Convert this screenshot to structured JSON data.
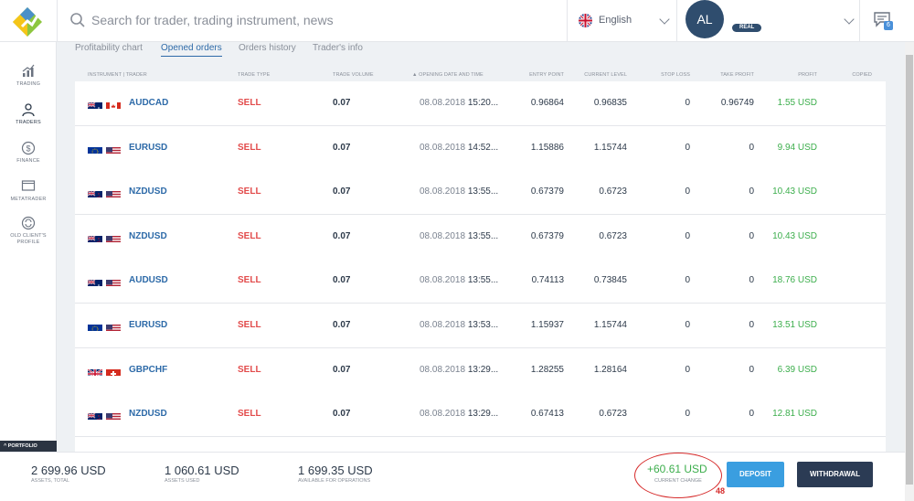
{
  "header": {
    "search_placeholder": "Search for trader, trading instrument, news",
    "language": "English",
    "avatar_initials": "AL",
    "account_badge": "REAL",
    "chat_count": "6"
  },
  "sidebar": {
    "items": [
      {
        "label": "TRADING",
        "icon": "bar-chart-icon"
      },
      {
        "label": "TRADERS",
        "icon": "trader-user-icon"
      },
      {
        "label": "FINANCE",
        "icon": "dollar-coin-icon"
      },
      {
        "label": "METATRADER",
        "icon": "monitor-icon"
      },
      {
        "label": "OLD CLIENT'S PROFILE",
        "icon": "refresh-circle-icon"
      }
    ],
    "portfolio_label": "PORTFOLIO"
  },
  "tabs": [
    {
      "label": "Profitability chart"
    },
    {
      "label": "Opened orders"
    },
    {
      "label": "Orders history"
    },
    {
      "label": "Trader's info"
    }
  ],
  "table": {
    "headers": [
      "INSTRUMENT | TRADER",
      "TRADE TYPE",
      "TRADE VOLUME",
      "▲ OPENING DATE AND TIME",
      "ENTRY POINT",
      "CURRENT LEVEL",
      "STOP LOSS",
      "TAKE PROFIT",
      "PROFIT",
      "COPIED"
    ],
    "rows": [
      {
        "flags": [
          "au",
          "ca"
        ],
        "instrument": "AUDCAD",
        "type": "SELL",
        "volume": "0.07",
        "date": "08.08.2018",
        "time": "15:20...",
        "entry": "0.96864",
        "current": "0.96835",
        "stop_loss": "0",
        "take_profit": "0.96749",
        "profit": "1.55 USD"
      },
      {
        "flags": [
          "eu",
          "us"
        ],
        "instrument": "EURUSD",
        "type": "SELL",
        "volume": "0.07",
        "date": "08.08.2018",
        "time": "14:52...",
        "entry": "1.15886",
        "current": "1.15744",
        "stop_loss": "0",
        "take_profit": "0",
        "profit": "9.94 USD"
      },
      {
        "flags": [
          "nz",
          "us"
        ],
        "instrument": "NZDUSD",
        "type": "SELL",
        "volume": "0.07",
        "date": "08.08.2018",
        "time": "13:55...",
        "entry": "0.67379",
        "current": "0.6723",
        "stop_loss": "0",
        "take_profit": "0",
        "profit": "10.43 USD"
      },
      {
        "flags": [
          "nz",
          "us"
        ],
        "instrument": "NZDUSD",
        "type": "SELL",
        "volume": "0.07",
        "date": "08.08.2018",
        "time": "13:55...",
        "entry": "0.67379",
        "current": "0.6723",
        "stop_loss": "0",
        "take_profit": "0",
        "profit": "10.43 USD"
      },
      {
        "flags": [
          "au",
          "us"
        ],
        "instrument": "AUDUSD",
        "type": "SELL",
        "volume": "0.07",
        "date": "08.08.2018",
        "time": "13:55...",
        "entry": "0.74113",
        "current": "0.73845",
        "stop_loss": "0",
        "take_profit": "0",
        "profit": "18.76 USD"
      },
      {
        "flags": [
          "eu",
          "us"
        ],
        "instrument": "EURUSD",
        "type": "SELL",
        "volume": "0.07",
        "date": "08.08.2018",
        "time": "13:53...",
        "entry": "1.15937",
        "current": "1.15744",
        "stop_loss": "0",
        "take_profit": "0",
        "profit": "13.51 USD"
      },
      {
        "flags": [
          "gb",
          "ch"
        ],
        "instrument": "GBPCHF",
        "type": "SELL",
        "volume": "0.07",
        "date": "08.08.2018",
        "time": "13:29...",
        "entry": "1.28255",
        "current": "1.28164",
        "stop_loss": "0",
        "take_profit": "0",
        "profit": "6.39 USD"
      },
      {
        "flags": [
          "nz",
          "us"
        ],
        "instrument": "NZDUSD",
        "type": "SELL",
        "volume": "0.07",
        "date": "08.08.2018",
        "time": "13:29...",
        "entry": "0.67413",
        "current": "0.6723",
        "stop_loss": "0",
        "take_profit": "0",
        "profit": "12.81 USD"
      }
    ]
  },
  "footer": {
    "assets_total_value": "2 699.96 USD",
    "assets_total_label": "ASSETS, TOTAL",
    "assets_used_value": "1 060.61 USD",
    "assets_used_label": "ASSETS USED",
    "available_value": "1 699.35 USD",
    "available_label": "AVAILABLE FOR OPERATIONS",
    "current_change_value": "+60.61 USD",
    "current_change_label": "CURRENT CHANGE",
    "annotation": "48",
    "deposit_label": "DEPOSIT",
    "withdrawal_label": "WITHDRAWAL"
  },
  "colors": {
    "accent_blue": "#2d6aa8",
    "sell_red": "#e24b4b",
    "profit_green": "#3cae4c",
    "deposit_blue": "#3a9ee0",
    "withdraw_navy": "#2b3b54",
    "annotation_red": "#d62b2b"
  }
}
